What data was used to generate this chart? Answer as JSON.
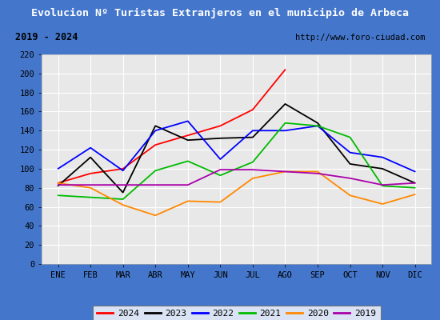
{
  "title": "Evolucion Nº Turistas Extranjeros en el municipio de Arbeca",
  "subtitle_left": "2019 - 2024",
  "subtitle_right": "http://www.foro-ciudad.com",
  "months": [
    "ENE",
    "FEB",
    "MAR",
    "ABR",
    "MAY",
    "JUN",
    "JUL",
    "AGO",
    "SEP",
    "OCT",
    "NOV",
    "DIC"
  ],
  "series": {
    "2024": [
      85,
      95,
      100,
      125,
      135,
      145,
      162,
      204,
      null,
      null,
      null,
      null
    ],
    "2023": [
      82,
      112,
      75,
      145,
      130,
      132,
      133,
      168,
      148,
      105,
      100,
      85
    ],
    "2022": [
      100,
      122,
      98,
      140,
      150,
      110,
      140,
      140,
      145,
      117,
      112,
      97
    ],
    "2021": [
      72,
      70,
      68,
      98,
      108,
      93,
      107,
      148,
      145,
      133,
      82,
      80
    ],
    "2020": [
      85,
      80,
      62,
      51,
      66,
      65,
      90,
      97,
      97,
      72,
      63,
      73
    ],
    "2019": [
      83,
      83,
      83,
      83,
      83,
      99,
      99,
      97,
      95,
      90,
      83,
      85
    ]
  },
  "colors": {
    "2024": "#ff0000",
    "2023": "#000000",
    "2022": "#0000ff",
    "2021": "#00bb00",
    "2020": "#ff8800",
    "2019": "#aa00aa"
  },
  "ylim": [
    0,
    220
  ],
  "yticks": [
    0,
    20,
    40,
    60,
    80,
    100,
    120,
    140,
    160,
    180,
    200,
    220
  ],
  "title_bg_color": "#4477cc",
  "title_text_color": "#ffffff",
  "plot_bg_color": "#e8e8e8",
  "grid_color": "#ffffff",
  "subtitle_box_color": "#ffffff",
  "border_color": "#4477cc",
  "fig_bg_color": "#4477cc"
}
